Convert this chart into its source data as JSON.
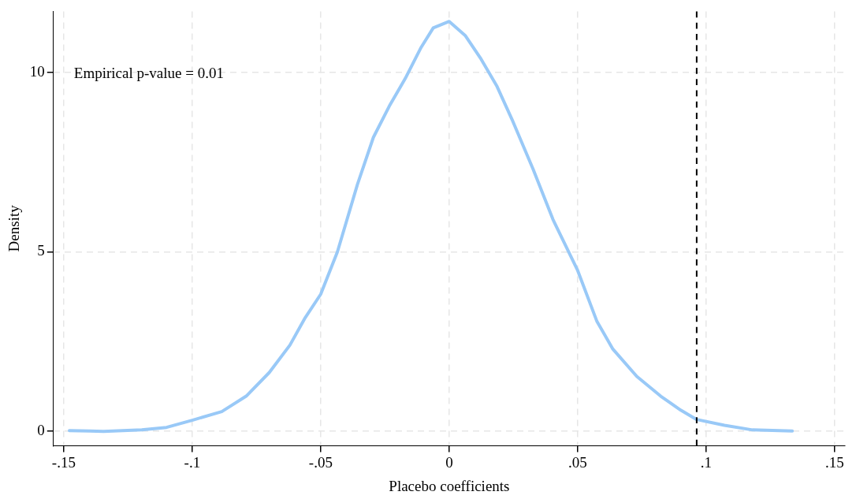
{
  "chart_data": {
    "type": "line",
    "xlabel": "Placebo coefficients",
    "ylabel": "Density",
    "annotations": [
      "Empirical p-value = 0.01"
    ],
    "series": [
      {
        "color": "#99c9f7",
        "x": [
          -0.1478,
          -0.1398,
          -0.1345,
          -0.1196,
          -0.11,
          -0.1,
          -0.0885,
          -0.079,
          -0.07,
          -0.062,
          -0.056,
          -0.05,
          -0.0435,
          -0.0357,
          -0.0295,
          -0.0233,
          -0.0171,
          -0.0109,
          -0.0062,
          0,
          0.0062,
          0.0124,
          0.0186,
          0.0248,
          0.0326,
          0.0404,
          0.05,
          0.0575,
          0.0637,
          0.073,
          0.0823,
          0.0901,
          0.0963,
          0.1071,
          0.118,
          0.1335
        ],
        "values": [
          0.02,
          0.01,
          0,
          0.04,
          0.11,
          0.31,
          0.55,
          0.98,
          1.64,
          2.4,
          3.17,
          3.82,
          5.0,
          6.88,
          8.19,
          9.06,
          9.83,
          10.7,
          11.24,
          11.42,
          11.03,
          10.37,
          9.61,
          8.63,
          7.31,
          5.9,
          4.48,
          3.06,
          2.29,
          1.53,
          0.98,
          0.59,
          0.33,
          0.17,
          0.04,
          0.01
        ]
      }
    ],
    "xlim": [
      -0.154,
      0.154
    ],
    "xticks": [
      {
        "value": -0.15,
        "label": "-.15"
      },
      {
        "value": -0.1,
        "label": "-.1"
      },
      {
        "value": -0.05,
        "label": "-.05"
      },
      0,
      {
        "value": 0.05,
        "label": ".05"
      },
      {
        "value": 0.1,
        "label": ".1"
      },
      {
        "value": 0.15,
        "label": ".15"
      }
    ],
    "ylim": [
      -0.4,
      11.7
    ],
    "yticks": [
      0,
      5,
      10
    ],
    "ref_lines": [
      {
        "axis": "x",
        "value": 0.0963,
        "color": "#000000",
        "line_style": "dashed"
      }
    ],
    "grid": true,
    "legend": false,
    "marker": "none",
    "line_style": "solid"
  }
}
